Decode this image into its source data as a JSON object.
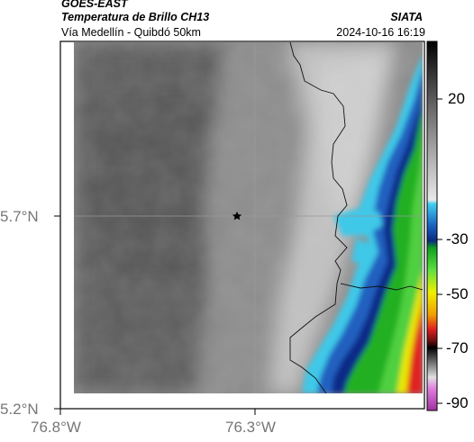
{
  "header": {
    "organization": "GOES-EAST",
    "product": "Temperatura de Brillo CH13",
    "subtitle": "Vía Medellín - Quibdó 50km",
    "brand": "SIATA",
    "datetime": "2024-10-16 16:19"
  },
  "map": {
    "lat_labels": [
      "5.7°N",
      "5.2°N"
    ],
    "lon_labels": [
      "76.8°W",
      "76.3°W"
    ],
    "marker": "star-icon"
  },
  "colorbar": {
    "ticks": [
      "20",
      "-30",
      "-50",
      "-70",
      "-90"
    ]
  },
  "colors": {
    "land_gray_dark": "#5a5a5a",
    "land_gray_light": "#c8c8c8",
    "cyan": "#38c8e8",
    "blue": "#1040a0",
    "green": "#20c020",
    "yellow": "#e8e800",
    "red": "#e02020"
  }
}
